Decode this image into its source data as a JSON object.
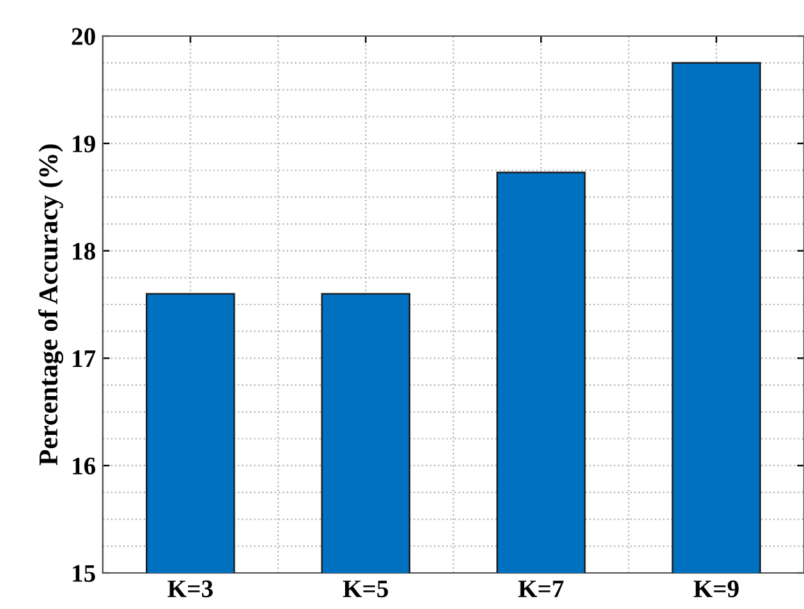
{
  "chart_data": {
    "type": "bar",
    "ylabel": "Percentage of Accuracy (%)",
    "categories": [
      "K=3",
      "K=5",
      "K=7",
      "K=9"
    ],
    "values": [
      17.6,
      17.6,
      18.73,
      19.75
    ],
    "color": "#0070c0",
    "ylim": [
      15,
      20
    ],
    "yticks": [
      15,
      16,
      17,
      18,
      19,
      20
    ],
    "grid": true
  }
}
